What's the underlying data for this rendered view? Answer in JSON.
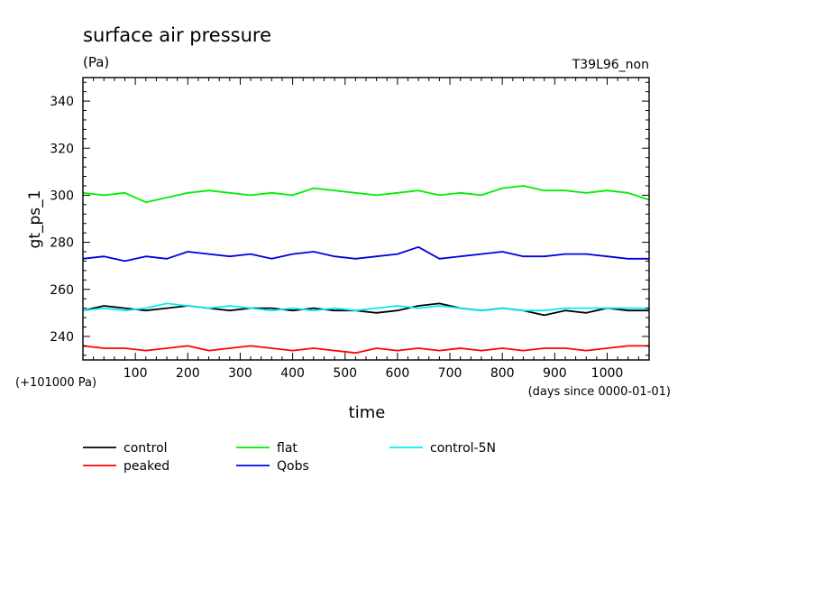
{
  "chart_data": {
    "type": "line",
    "title": "surface air pressure",
    "units": "(Pa)",
    "run_label": "T39L96_non",
    "ylabel": "gt_ps_1",
    "xlabel": "time",
    "x_unit_note": "(days since 0000-01-01)",
    "y_offset_note": "(+101000 Pa)",
    "xlim": [
      0,
      1080
    ],
    "ylim": [
      230,
      350
    ],
    "x_ticks": [
      "100",
      "200",
      "300",
      "400",
      "500",
      "600",
      "700",
      "800",
      "900",
      "1000"
    ],
    "y_ticks": [
      "240",
      "260",
      "280",
      "300",
      "320",
      "340"
    ],
    "grid": false,
    "legend_position": "below chart",
    "series": [
      {
        "name": "control",
        "color": "#000000",
        "x": [
          0,
          40,
          80,
          120,
          160,
          200,
          240,
          280,
          320,
          360,
          400,
          440,
          480,
          520,
          560,
          600,
          640,
          680,
          720,
          760,
          800,
          840,
          880,
          920,
          960,
          1000,
          1040,
          1080
        ],
        "y": [
          251,
          253,
          252,
          251,
          252,
          253,
          252,
          251,
          252,
          252,
          251,
          252,
          251,
          251,
          250,
          251,
          253,
          254,
          252,
          251,
          252,
          251,
          249,
          251,
          250,
          252,
          251,
          251
        ]
      },
      {
        "name": "peaked",
        "color": "#ff0000",
        "x": [
          0,
          40,
          80,
          120,
          160,
          200,
          240,
          280,
          320,
          360,
          400,
          440,
          480,
          520,
          560,
          600,
          640,
          680,
          720,
          760,
          800,
          840,
          880,
          920,
          960,
          1000,
          1040,
          1080
        ],
        "y": [
          236,
          235,
          235,
          234,
          235,
          236,
          234,
          235,
          236,
          235,
          234,
          235,
          234,
          233,
          235,
          234,
          235,
          234,
          235,
          234,
          235,
          234,
          235,
          235,
          234,
          235,
          236,
          236
        ]
      },
      {
        "name": "flat",
        "color": "#00ee00",
        "x": [
          0,
          40,
          80,
          120,
          160,
          200,
          240,
          280,
          320,
          360,
          400,
          440,
          480,
          520,
          560,
          600,
          640,
          680,
          720,
          760,
          800,
          840,
          880,
          920,
          960,
          1000,
          1040,
          1080
        ],
        "y": [
          301,
          300,
          301,
          297,
          299,
          301,
          302,
          301,
          300,
          301,
          300,
          303,
          302,
          301,
          300,
          301,
          302,
          300,
          301,
          300,
          303,
          304,
          302,
          302,
          301,
          302,
          301,
          298
        ]
      },
      {
        "name": "Qobs",
        "color": "#0000dd",
        "x": [
          0,
          40,
          80,
          120,
          160,
          200,
          240,
          280,
          320,
          360,
          400,
          440,
          480,
          520,
          560,
          600,
          640,
          680,
          720,
          760,
          800,
          840,
          880,
          920,
          960,
          1000,
          1040,
          1080
        ],
        "y": [
          273,
          274,
          272,
          274,
          273,
          276,
          275,
          274,
          275,
          273,
          275,
          276,
          274,
          273,
          274,
          275,
          278,
          273,
          274,
          275,
          276,
          274,
          274,
          275,
          275,
          274,
          273,
          273
        ]
      },
      {
        "name": "control-5N",
        "color": "#00eeee",
        "x": [
          0,
          40,
          80,
          120,
          160,
          200,
          240,
          280,
          320,
          360,
          400,
          440,
          480,
          520,
          560,
          600,
          640,
          680,
          720,
          760,
          800,
          840,
          880,
          920,
          960,
          1000,
          1040,
          1080
        ],
        "y": [
          251,
          252,
          251,
          252,
          254,
          253,
          252,
          253,
          252,
          251,
          252,
          251,
          252,
          251,
          252,
          253,
          252,
          253,
          252,
          251,
          252,
          251,
          251,
          252,
          252,
          252,
          252,
          252
        ]
      }
    ]
  }
}
